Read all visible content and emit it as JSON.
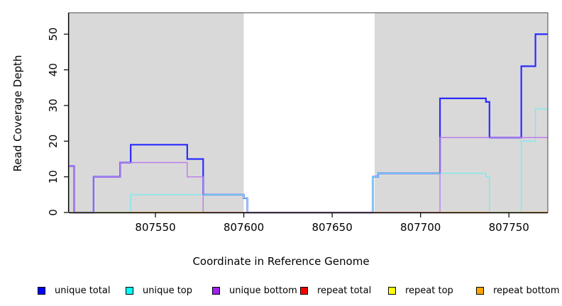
{
  "chart_data": {
    "type": "line",
    "title": "",
    "xlabel": "Coordinate in Reference Genome",
    "ylabel": "Read Coverage Depth",
    "xlim": [
      807501,
      807772
    ],
    "ylim": [
      0,
      56
    ],
    "x_ticks": [
      807550,
      807600,
      807650,
      807700,
      807750
    ],
    "y_ticks": [
      0,
      10,
      20,
      30,
      40,
      50
    ],
    "grid": false,
    "legend_position": "bottom",
    "background_regions": [
      {
        "name": "covered-region-left",
        "from": 807501,
        "to": 807600,
        "color": "#d9d9d9"
      },
      {
        "name": "uncovered-gap",
        "from": 807600,
        "to": 807674,
        "color": "#ffffff"
      },
      {
        "name": "covered-region-right",
        "from": 807674,
        "to": 807772,
        "color": "#d9d9d9"
      }
    ],
    "series": [
      {
        "name": "unique total",
        "color": "#2b2bff",
        "width": 2.2,
        "steps": [
          [
            807501,
            13
          ],
          [
            807504,
            0
          ],
          [
            807515,
            10
          ],
          [
            807530,
            14
          ],
          [
            807536,
            19
          ],
          [
            807568,
            15
          ],
          [
            807577,
            5
          ],
          [
            807600,
            4
          ],
          [
            807602,
            0
          ],
          [
            807673,
            10
          ],
          [
            807676,
            11
          ],
          [
            807711,
            32
          ],
          [
            807737,
            31
          ],
          [
            807739,
            21
          ],
          [
            807757,
            41
          ],
          [
            807765,
            50
          ]
        ]
      },
      {
        "name": "unique top",
        "color": "#7de9ee",
        "width": 1.4,
        "steps": [
          [
            807501,
            0
          ],
          [
            807536,
            5
          ],
          [
            807600,
            4
          ],
          [
            807602,
            0
          ],
          [
            807673,
            10
          ],
          [
            807676,
            11
          ],
          [
            807737,
            10
          ],
          [
            807739,
            0
          ],
          [
            807757,
            20
          ],
          [
            807765,
            29
          ]
        ]
      },
      {
        "name": "unique bottom",
        "color": "#bd7bec",
        "width": 1.4,
        "steps": [
          [
            807501,
            13
          ],
          [
            807504,
            0
          ],
          [
            807515,
            10
          ],
          [
            807530,
            14
          ],
          [
            807568,
            10
          ],
          [
            807577,
            0
          ],
          [
            807711,
            21
          ]
        ]
      },
      {
        "name": "repeat total",
        "color": "#e4637f",
        "width": 1.2,
        "steps": [
          [
            807501,
            0
          ]
        ]
      },
      {
        "name": "repeat top",
        "color": "#f5e642",
        "width": 1.2,
        "steps": [
          [
            807501,
            0
          ]
        ]
      },
      {
        "name": "repeat bottom",
        "color": "#ff9d1f",
        "width": 1.8,
        "steps": [
          [
            807501,
            0
          ]
        ]
      }
    ],
    "baseline_segments": [
      {
        "from": 807501,
        "to": 807536,
        "color": "#8ad5a4"
      },
      {
        "from": 807536,
        "to": 807577,
        "color": "#ff9d1f"
      },
      {
        "from": 807577,
        "to": 807600,
        "color": "#e4637f"
      },
      {
        "from": 807600,
        "to": 807673,
        "color": "#8c83e9"
      },
      {
        "from": 807673,
        "to": 807711,
        "color": "#e4637f"
      },
      {
        "from": 807711,
        "to": 807739,
        "color": "#ff9d1f"
      },
      {
        "from": 807739,
        "to": 807757,
        "color": "#8ad5a4"
      },
      {
        "from": 807757,
        "to": 807772,
        "color": "#ff9d1f"
      }
    ]
  },
  "legend": {
    "items": [
      {
        "label": "unique total",
        "color": "#0000ff"
      },
      {
        "label": "unique top",
        "color": "#00ffff"
      },
      {
        "label": "unique bottom",
        "color": "#a020f0"
      },
      {
        "label": "repeat total",
        "color": "#ff0000"
      },
      {
        "label": "repeat top",
        "color": "#ffff00"
      },
      {
        "label": "repeat bottom",
        "color": "#ffa500"
      }
    ]
  },
  "axis": {
    "xlabel": "Coordinate in Reference Genome",
    "ylabel": "Read Coverage Depth"
  }
}
